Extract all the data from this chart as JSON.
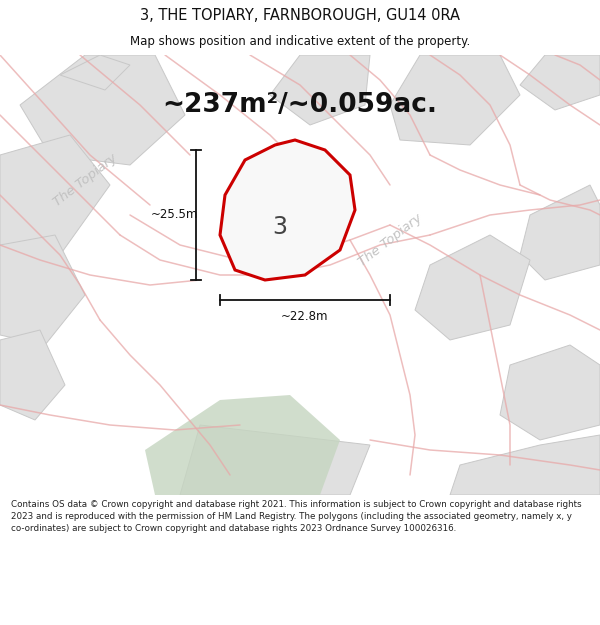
{
  "title": "3, THE TOPIARY, FARNBOROUGH, GU14 0RA",
  "subtitle": "Map shows position and indicative extent of the property.",
  "area_text": "~237m²/~0.059ac.",
  "label_3": "3",
  "dim_width": "~22.8m",
  "dim_height": "~25.5m",
  "road_label_diag": "The Topiary",
  "road_label_left": "The Topiary",
  "copyright_text": "Contains OS data © Crown copyright and database right 2021. This information is subject to Crown copyright and database rights 2023 and is reproduced with the permission of HM Land Registry. The polygons (including the associated geometry, namely x, y co-ordinates) are subject to Crown copyright and database rights 2023 Ordnance Survey 100026316.",
  "header_bg": "#ffffff",
  "map_bg": "#f0f0f0",
  "poly_fill": "#e0e0e0",
  "poly_edge": "#c8c8c8",
  "road_color": "#e8a8a8",
  "highlight_stroke": "#cc0000",
  "highlight_fill": "#f8f8f8",
  "dim_color": "#111111",
  "green_fill": "#c5d5c0",
  "footer_bg": "#ffffff",
  "road_label_color": "#c0c0c0",
  "area_text_color": "#111111"
}
